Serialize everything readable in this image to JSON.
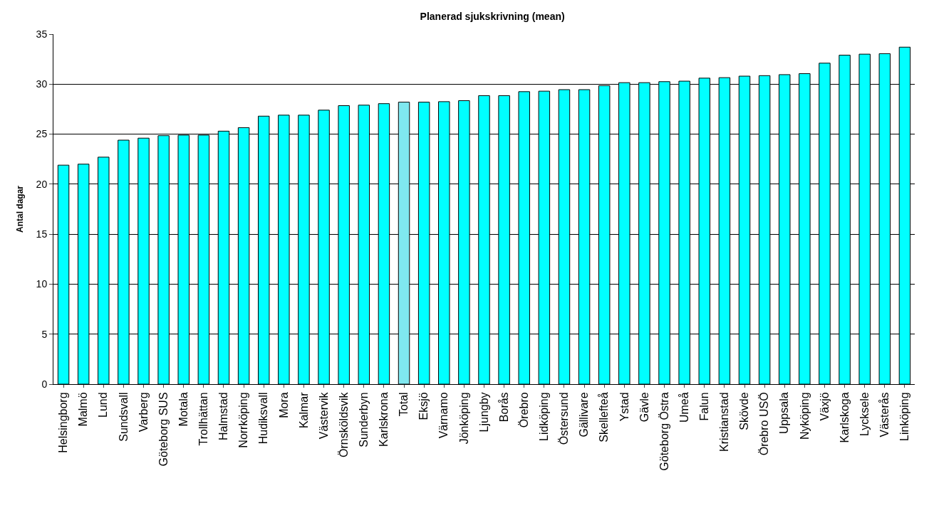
{
  "chart_data": {
    "type": "bar",
    "title": "Planerad sjukskrivning (mean)",
    "ylabel": "Antal dagar",
    "categories": [
      "Helsingborg",
      "Malmö",
      "Lund",
      "Sundsvall",
      "Varberg",
      "Göteborg SUS",
      "Motala",
      "Trollhättan",
      "Halmstad",
      "Norrköping",
      "Hudiksvall",
      "Mora",
      "Kalmar",
      "Västervik",
      "Örnsköldsvik",
      "Sunderbyn",
      "Karlskrona",
      "Total",
      "Eksjö",
      "Värnamo",
      "Jönköping",
      "Ljungby",
      "Borås",
      "Örebro",
      "Lidköping",
      "Östersund",
      "Gällivare",
      "Skellefteå",
      "Ystad",
      "Gävle",
      "Göteborg Östra",
      "Umeå",
      "Falun",
      "Kristianstad",
      "Skövde",
      "Örebro USÖ",
      "Uppsala",
      "Nyköping",
      "Växjö",
      "Karlskoga",
      "Lycksele",
      "Västerås",
      "Linköping"
    ],
    "values": [
      21.9,
      22.0,
      22.7,
      24.4,
      24.6,
      24.85,
      24.9,
      24.9,
      25.3,
      25.65,
      26.8,
      26.9,
      26.9,
      27.4,
      27.85,
      27.9,
      28.05,
      28.2,
      28.2,
      28.25,
      28.35,
      28.85,
      28.85,
      29.25,
      29.3,
      29.45,
      29.45,
      29.85,
      30.15,
      30.15,
      30.25,
      30.3,
      30.6,
      30.65,
      30.8,
      30.85,
      30.95,
      31.05,
      32.1,
      32.9,
      33.0,
      33.05,
      33.7
    ],
    "colors": [
      "#00ffff",
      "#00ffff",
      "#00ffff",
      "#00ffff",
      "#00ffff",
      "#00ffff",
      "#00ffff",
      "#00ffff",
      "#00ffff",
      "#00ffff",
      "#00ffff",
      "#00ffff",
      "#00ffff",
      "#00ffff",
      "#00ffff",
      "#00ffff",
      "#00ffff",
      "#7fe8f0",
      "#00ffff",
      "#00ffff",
      "#00ffff",
      "#00ffff",
      "#00ffff",
      "#00ffff",
      "#00ffff",
      "#00ffff",
      "#00ffff",
      "#00ffff",
      "#00ffff",
      "#00ffff",
      "#00ffff",
      "#00ffff",
      "#00ffff",
      "#00ffff",
      "#00ffff",
      "#00ffff",
      "#00ffff",
      "#00ffff",
      "#00ffff",
      "#00ffff",
      "#00ffff",
      "#00ffff",
      "#00ffff"
    ],
    "ylim": [
      0,
      35
    ],
    "yticks": [
      0,
      5,
      10,
      15,
      20,
      25,
      30,
      35
    ],
    "grid": "y"
  }
}
